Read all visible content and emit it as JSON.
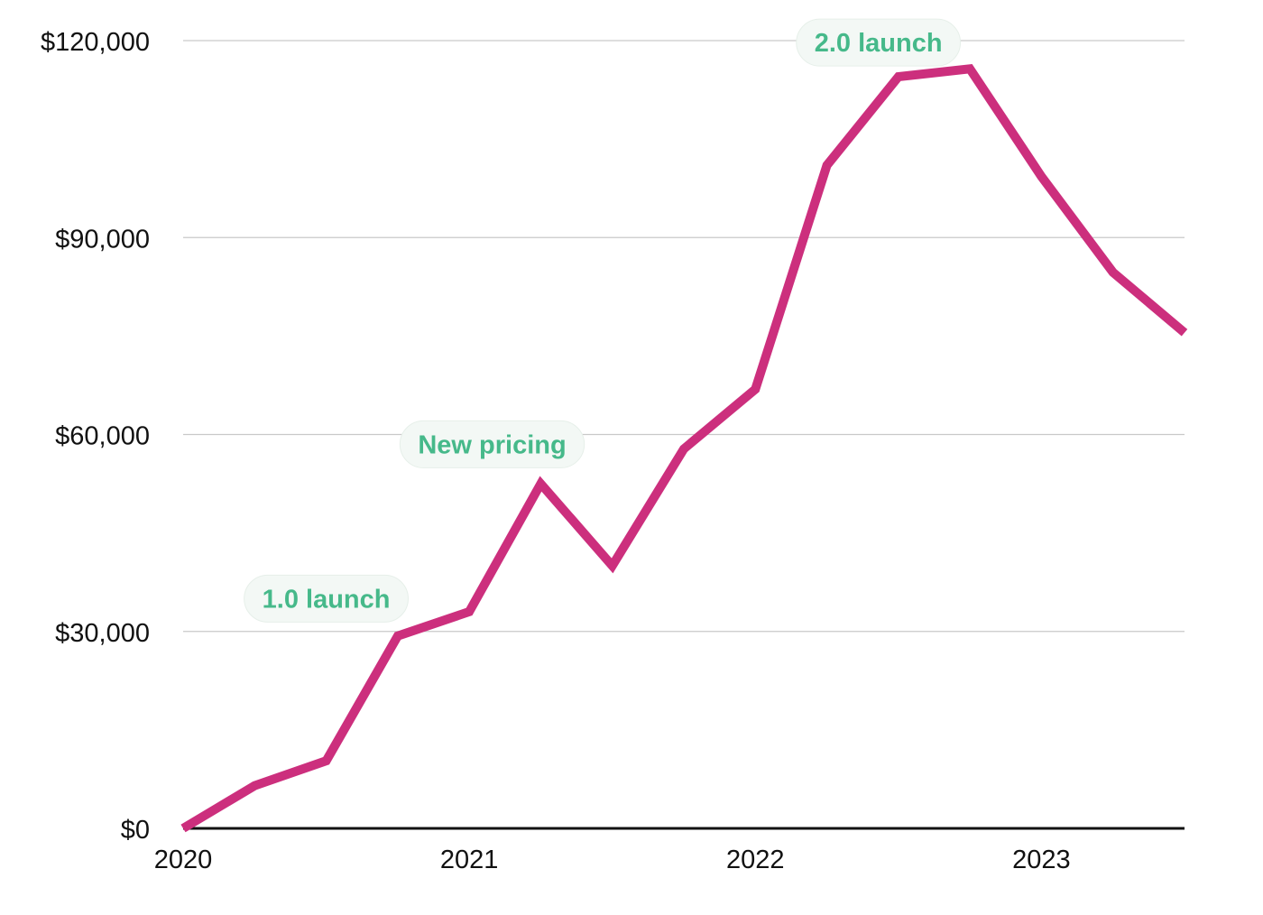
{
  "chart_data": {
    "type": "line",
    "title": "",
    "xlabel": "",
    "ylabel": "",
    "grid": true,
    "legend": "none",
    "colors": {
      "line": "#cc2f7d",
      "grid": "#c9c9c9",
      "axis": "#111111",
      "annotation_text": "#46b98a",
      "annotation_bg": "#f3f8f5"
    },
    "xlim": [
      2020.0,
      2023.5
    ],
    "ylim": [
      0,
      120000
    ],
    "x_ticks": [
      {
        "value": 2020,
        "label": "2020"
      },
      {
        "value": 2021,
        "label": "2021"
      },
      {
        "value": 2022,
        "label": "2022"
      },
      {
        "value": 2023,
        "label": "2023"
      }
    ],
    "y_ticks": [
      {
        "value": 0,
        "label": "$0"
      },
      {
        "value": 30000,
        "label": "$30,000"
      },
      {
        "value": 60000,
        "label": "$60,000"
      },
      {
        "value": 90000,
        "label": "$90,000"
      },
      {
        "value": 120000,
        "label": "$120,000"
      }
    ],
    "series": [
      {
        "x": [
          2020.0,
          2020.25,
          2020.5,
          2020.75,
          2021.0,
          2021.25,
          2021.5,
          2021.75,
          2022.0,
          2022.25,
          2022.5,
          2022.75,
          2023.0,
          2023.25,
          2023.5
        ],
        "values": [
          0,
          6500,
          10300,
          29300,
          33000,
          52500,
          40000,
          57800,
          66900,
          101000,
          114500,
          115700,
          99300,
          84700,
          75500
        ]
      }
    ],
    "annotations": [
      {
        "label": "1.0 launch",
        "x": 2020.5,
        "y": 35000
      },
      {
        "label": "New pricing",
        "x": 2021.08,
        "y": 58500
      },
      {
        "label": "2.0 launch",
        "x": 2022.43,
        "y": 119700
      }
    ]
  }
}
